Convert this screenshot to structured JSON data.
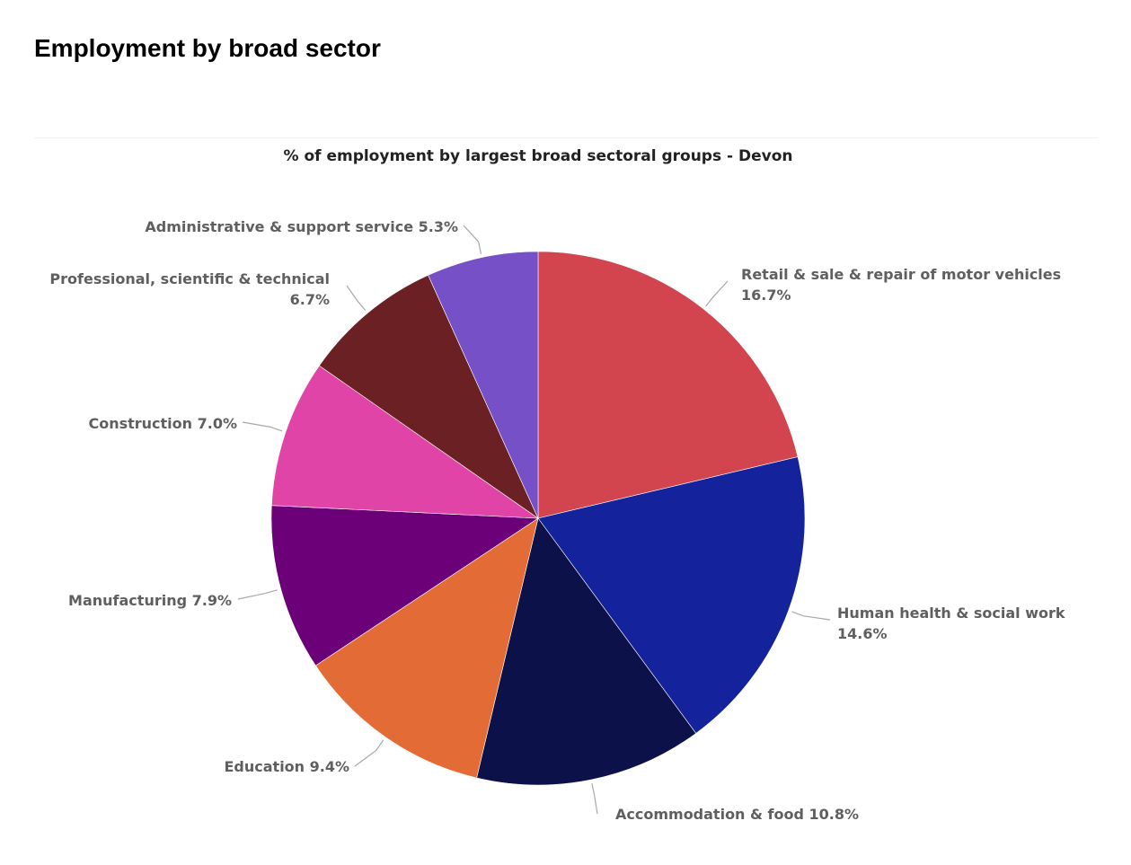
{
  "page": {
    "heading": "Employment by broad sector"
  },
  "chart_data": {
    "type": "pie",
    "title": "% of employment by largest broad sectoral groups - Devon",
    "slices": [
      {
        "label": "Retail & sale & repair of motor vehicles",
        "value": 16.7,
        "value_label": "16.7%",
        "color": "#d2444e"
      },
      {
        "label": "Human health & social work",
        "value": 14.6,
        "value_label": "14.6%",
        "color": "#14239c"
      },
      {
        "label": "Accommodation & food",
        "value": 10.8,
        "value_label": "10.8%",
        "color": "#0c114a"
      },
      {
        "label": "Education",
        "value": 9.4,
        "value_label": "9.4%",
        "color": "#e36c36"
      },
      {
        "label": "Manufacturing",
        "value": 7.9,
        "value_label": "7.9%",
        "color": "#6b0078"
      },
      {
        "label": "Construction",
        "value": 7.0,
        "value_label": "7.0%",
        "color": "#e044a7"
      },
      {
        "label": "Professional, scientific & technical",
        "value": 6.7,
        "value_label": "6.7%",
        "color": "#6b2024"
      },
      {
        "label": "Administrative & support service",
        "value": 5.3,
        "value_label": "5.3%",
        "color": "#7650c6"
      }
    ]
  }
}
